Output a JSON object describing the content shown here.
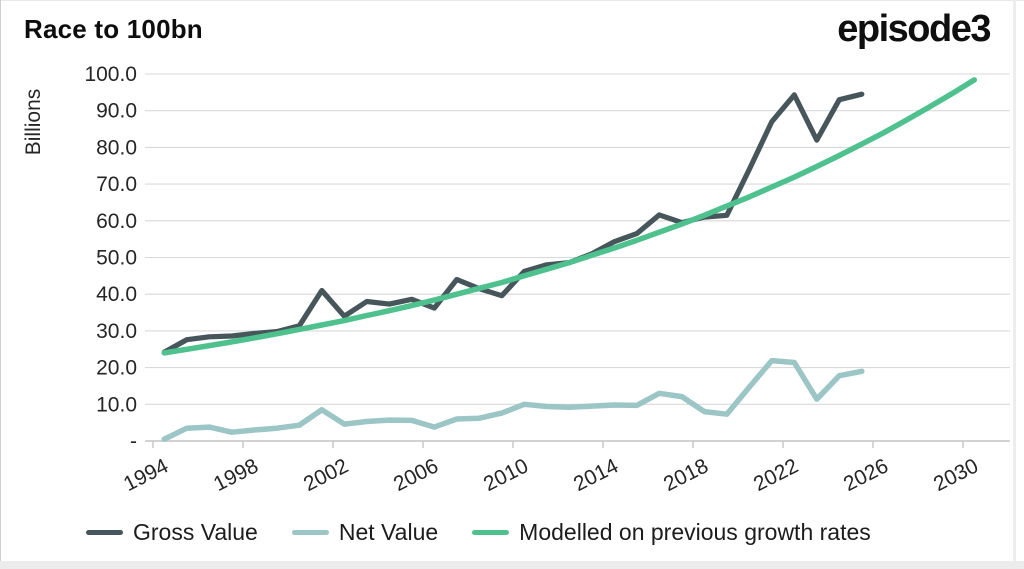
{
  "header": {
    "title": "Race to 100bn",
    "logo": "episode3"
  },
  "chart_data": {
    "type": "line",
    "title": "Race to 100bn",
    "ylabel": "Billions",
    "xlabel": "",
    "ylim": [
      0,
      100
    ],
    "grid": true,
    "legend_position": "bottom",
    "ytick_labels_top_to_bottom": [
      "100.0",
      "90.0",
      "80.0",
      "70.0",
      "60.0",
      "50.0",
      "40.0",
      "30.0",
      "20.0",
      "10.0",
      "-"
    ],
    "xticks": [
      "1994",
      "1998",
      "2002",
      "2006",
      "2010",
      "2014",
      "2018",
      "2022",
      "2026",
      "2030"
    ],
    "series": [
      {
        "name": "Gross Value",
        "key": "gross-value",
        "color": "#46565a",
        "stroke_width": 5.2,
        "start_year": 1994,
        "values": [
          24.2,
          27.6,
          28.4,
          28.6,
          29.3,
          29.8,
          31.4,
          41.0,
          34.0,
          38.0,
          37.3,
          38.6,
          36.2,
          44.0,
          41.5,
          39.6,
          46.2,
          48.0,
          48.6,
          51.0,
          54.3,
          56.5,
          61.6,
          59.5,
          61.0,
          61.5,
          74.0,
          87.0,
          94.3,
          82.0,
          93.0,
          94.5
        ]
      },
      {
        "name": "Net Value",
        "key": "net-value",
        "color": "#9cc5c6",
        "stroke_width": 5.5,
        "start_year": 1994,
        "values": [
          0.5,
          3.5,
          3.8,
          2.4,
          3.0,
          3.5,
          4.3,
          8.5,
          4.6,
          5.3,
          5.7,
          5.6,
          3.8,
          6.0,
          6.2,
          7.6,
          10.0,
          9.4,
          9.2,
          9.5,
          9.8,
          9.7,
          13.0,
          12.1,
          8.0,
          7.3,
          14.7,
          21.9,
          21.4,
          11.4,
          17.8,
          19.0
        ]
      },
      {
        "name": "Modelled on previous growth rates",
        "key": "modelled",
        "color": "#4ec18e",
        "stroke_width": 5.5,
        "start_year": 1994,
        "values": [
          24.0,
          25.0,
          26.0,
          27.0,
          28.1,
          29.2,
          30.4,
          31.6,
          32.8,
          34.2,
          35.5,
          36.9,
          38.4,
          40.0,
          41.6,
          43.2,
          45.0,
          46.8,
          48.6,
          50.6,
          52.6,
          54.7,
          56.9,
          59.1,
          61.5,
          64.0,
          66.5,
          69.2,
          71.9,
          74.8,
          77.8,
          80.9,
          84.1,
          87.5,
          91.0,
          94.6,
          98.4
        ]
      }
    ],
    "colors": {
      "grid": "#d9d9d9",
      "axis": "#c4c4c4",
      "text": "#262626"
    }
  }
}
